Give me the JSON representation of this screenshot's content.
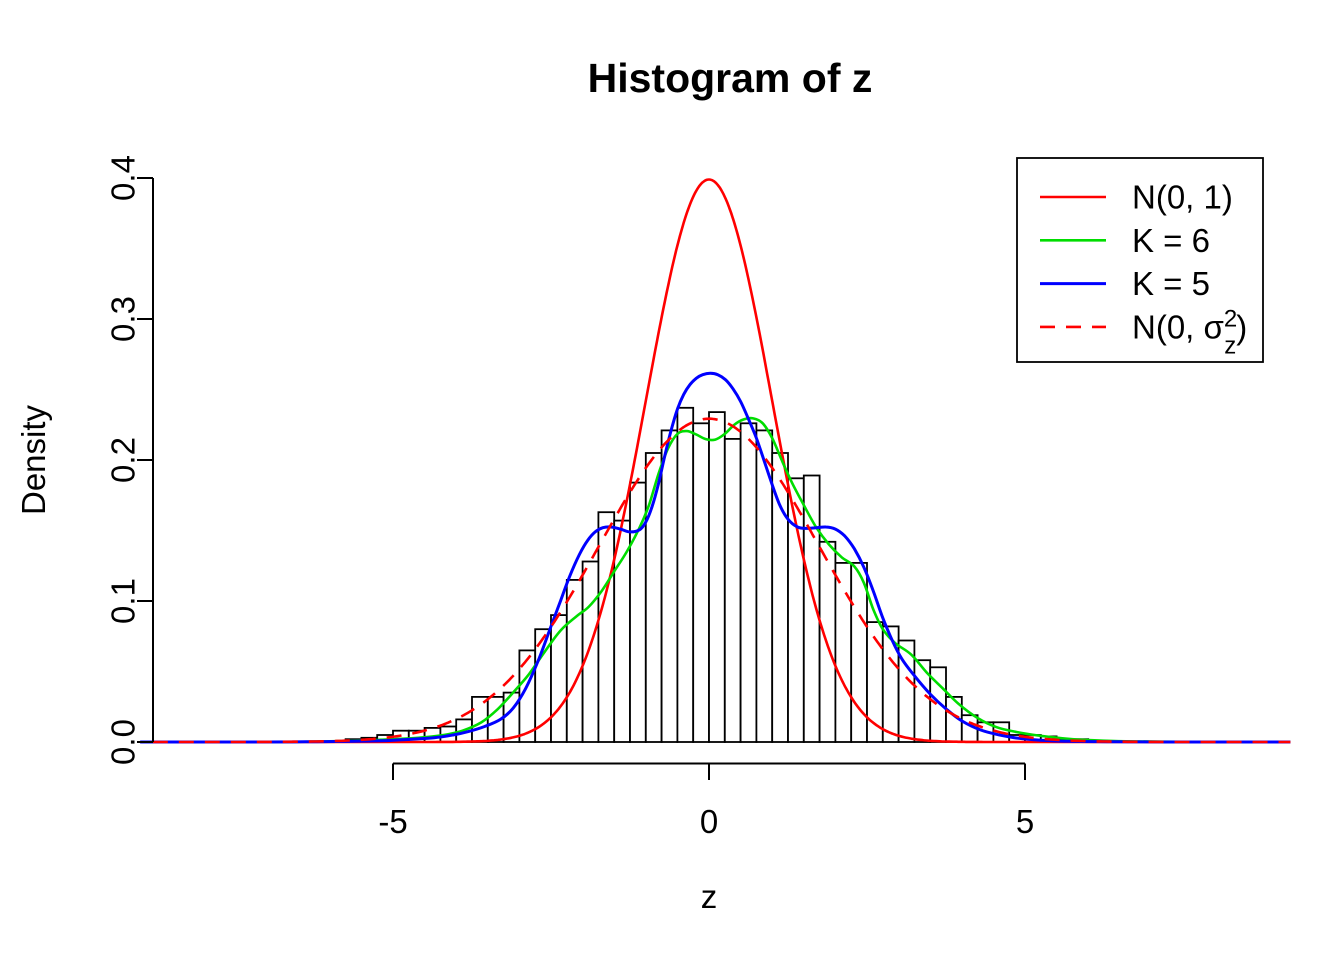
{
  "chart_data": {
    "type": "bar",
    "subtype": "histogram-with-density-curves",
    "title": "Histogram of z",
    "xlabel": "z",
    "ylabel": "Density",
    "xlim": [
      -8.8,
      9.2
    ],
    "ylim": [
      0,
      0.4
    ],
    "grid": false,
    "x_ticks": [
      {
        "value": -5,
        "label": "-5"
      },
      {
        "value": 0,
        "label": "0"
      },
      {
        "value": 5,
        "label": "5"
      }
    ],
    "y_ticks": [
      {
        "value": 0.0,
        "label": "0.0"
      },
      {
        "value": 0.1,
        "label": "0.1"
      },
      {
        "value": 0.2,
        "label": "0.2"
      },
      {
        "value": 0.3,
        "label": "0.3"
      },
      {
        "value": 0.4,
        "label": "0.4"
      }
    ],
    "histogram": {
      "bin_start": -5.75,
      "bin_width": 0.25,
      "bar_fill": "#ffffff",
      "bar_stroke": "#000000",
      "densities": [
        0.002,
        0.003,
        0.005,
        0.008,
        0.008,
        0.01,
        0.011,
        0.016,
        0.032,
        0.032,
        0.035,
        0.065,
        0.08,
        0.09,
        0.115,
        0.128,
        0.163,
        0.157,
        0.184,
        0.205,
        0.221,
        0.237,
        0.226,
        0.234,
        0.215,
        0.226,
        0.221,
        0.205,
        0.187,
        0.189,
        0.142,
        0.127,
        0.127,
        0.085,
        0.082,
        0.072,
        0.058,
        0.053,
        0.032,
        0.019,
        0.014,
        0.014,
        0.005,
        0.005,
        0.004,
        0.002,
        0.002
      ]
    },
    "curves": [
      {
        "id": "n01",
        "legend": "N(0, 1)",
        "color": "#ff0000",
        "style": "solid",
        "model": "normal",
        "mean": 0,
        "sd": 1,
        "peak_density": 0.399
      },
      {
        "id": "k6",
        "legend": "K = 6",
        "color": "#00dd00",
        "style": "solid",
        "points": [
          [
            -9.0,
            0
          ],
          [
            -7.0,
            0
          ],
          [
            -6.0,
            0.0005
          ],
          [
            -5.5,
            0.001
          ],
          [
            -5.0,
            0.002
          ],
          [
            -4.6,
            0.003
          ],
          [
            -4.2,
            0.005
          ],
          [
            -3.9,
            0.008
          ],
          [
            -3.6,
            0.014
          ],
          [
            -3.35,
            0.023
          ],
          [
            -3.1,
            0.035
          ],
          [
            -2.85,
            0.048
          ],
          [
            -2.6,
            0.064
          ],
          [
            -2.35,
            0.079
          ],
          [
            -2.1,
            0.089
          ],
          [
            -1.9,
            0.096
          ],
          [
            -1.7,
            0.107
          ],
          [
            -1.5,
            0.121
          ],
          [
            -1.3,
            0.135
          ],
          [
            -1.1,
            0.152
          ],
          [
            -0.95,
            0.168
          ],
          [
            -0.8,
            0.19
          ],
          [
            -0.65,
            0.208
          ],
          [
            -0.5,
            0.2185
          ],
          [
            -0.35,
            0.2205
          ],
          [
            -0.2,
            0.218
          ],
          [
            -0.05,
            0.2148
          ],
          [
            0.1,
            0.2145
          ],
          [
            0.25,
            0.2185
          ],
          [
            0.4,
            0.225
          ],
          [
            0.55,
            0.2288
          ],
          [
            0.7,
            0.2295
          ],
          [
            0.85,
            0.226
          ],
          [
            1.0,
            0.2155
          ],
          [
            1.15,
            0.2
          ],
          [
            1.3,
            0.185
          ],
          [
            1.5,
            0.168
          ],
          [
            1.7,
            0.152
          ],
          [
            1.9,
            0.14
          ],
          [
            2.1,
            0.131
          ],
          [
            2.3,
            0.1245
          ],
          [
            2.45,
            0.113
          ],
          [
            2.6,
            0.094
          ],
          [
            2.75,
            0.08
          ],
          [
            2.95,
            0.07
          ],
          [
            3.2,
            0.062
          ],
          [
            3.45,
            0.049
          ],
          [
            3.7,
            0.038
          ],
          [
            3.95,
            0.027
          ],
          [
            4.25,
            0.017
          ],
          [
            4.55,
            0.0105
          ],
          [
            4.85,
            0.0072
          ],
          [
            5.15,
            0.005
          ],
          [
            5.45,
            0.0033
          ],
          [
            5.75,
            0.002
          ],
          [
            6.1,
            0.0012
          ],
          [
            6.6,
            0.0005
          ],
          [
            7.2,
            0.0002
          ],
          [
            8.0,
            0
          ],
          [
            9.2,
            0
          ]
        ]
      },
      {
        "id": "k5",
        "legend": "K = 5",
        "color": "#0000ff",
        "style": "solid",
        "points": [
          [
            -9.0,
            0
          ],
          [
            -7.0,
            0
          ],
          [
            -6.2,
            0.0002
          ],
          [
            -5.6,
            0.0005
          ],
          [
            -5.1,
            0.001
          ],
          [
            -4.7,
            0.002
          ],
          [
            -4.35,
            0.003
          ],
          [
            -4.05,
            0.005
          ],
          [
            -3.8,
            0.0075
          ],
          [
            -3.55,
            0.011
          ],
          [
            -3.3,
            0.016
          ],
          [
            -3.1,
            0.024
          ],
          [
            -2.9,
            0.038
          ],
          [
            -2.7,
            0.058
          ],
          [
            -2.5,
            0.082
          ],
          [
            -2.35,
            0.1
          ],
          [
            -2.2,
            0.118
          ],
          [
            -2.05,
            0.133
          ],
          [
            -1.92,
            0.143
          ],
          [
            -1.8,
            0.149
          ],
          [
            -1.68,
            0.152
          ],
          [
            -1.55,
            0.1525
          ],
          [
            -1.4,
            0.151
          ],
          [
            -1.25,
            0.149
          ],
          [
            -1.1,
            0.1505
          ],
          [
            -1.0,
            0.156
          ],
          [
            -0.9,
            0.167
          ],
          [
            -0.8,
            0.183
          ],
          [
            -0.7,
            0.203
          ],
          [
            -0.6,
            0.221
          ],
          [
            -0.5,
            0.236
          ],
          [
            -0.4,
            0.2465
          ],
          [
            -0.3,
            0.2535
          ],
          [
            -0.2,
            0.258
          ],
          [
            -0.1,
            0.2605
          ],
          [
            0.02,
            0.2615
          ],
          [
            0.14,
            0.2605
          ],
          [
            0.26,
            0.257
          ],
          [
            0.38,
            0.2505
          ],
          [
            0.5,
            0.2415
          ],
          [
            0.62,
            0.2295
          ],
          [
            0.75,
            0.2155
          ],
          [
            0.88,
            0.1985
          ],
          [
            1.0,
            0.1825
          ],
          [
            1.12,
            0.168
          ],
          [
            1.25,
            0.158
          ],
          [
            1.4,
            0.1525
          ],
          [
            1.55,
            0.1515
          ],
          [
            1.7,
            0.152
          ],
          [
            1.85,
            0.1525
          ],
          [
            2.0,
            0.151
          ],
          [
            2.15,
            0.146
          ],
          [
            2.3,
            0.137
          ],
          [
            2.45,
            0.124
          ],
          [
            2.6,
            0.107
          ],
          [
            2.75,
            0.088
          ],
          [
            2.9,
            0.072
          ],
          [
            3.05,
            0.059
          ],
          [
            3.25,
            0.047
          ],
          [
            3.5,
            0.034
          ],
          [
            3.75,
            0.0235
          ],
          [
            4.0,
            0.015
          ],
          [
            4.3,
            0.0085
          ],
          [
            4.6,
            0.005
          ],
          [
            4.9,
            0.0026
          ],
          [
            5.25,
            0.0013
          ],
          [
            5.7,
            0.0005
          ],
          [
            6.3,
            0.0002
          ],
          [
            7.2,
            0
          ],
          [
            9.2,
            0
          ]
        ]
      },
      {
        "id": "n0sz",
        "legend": "N(0, σz²)",
        "legend_rich": {
          "pre": "N(0, σ",
          "sup": "2",
          "sub": "z",
          "post": ")"
        },
        "color": "#ff0000",
        "style": "dashed",
        "model": "normal",
        "mean": 0,
        "sd": 1.74,
        "peak_density": 0.229
      }
    ],
    "legend": {
      "position": "top-right",
      "border": true
    }
  },
  "colors": {
    "background": "#ffffff",
    "axis": "#000000",
    "red": "#ff0000",
    "green": "#00dd00",
    "blue": "#0000ff"
  }
}
